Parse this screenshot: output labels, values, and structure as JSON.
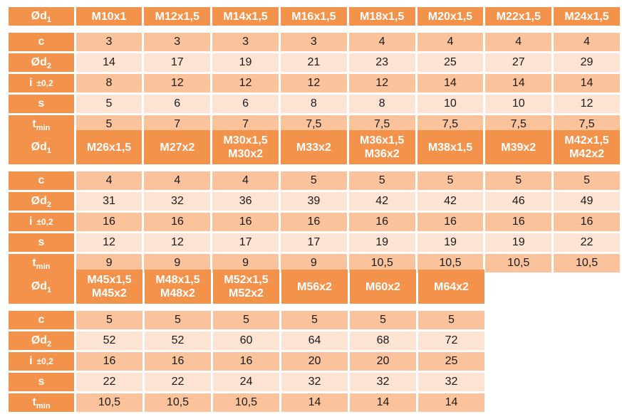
{
  "labels": {
    "header": {
      "main": "Ød",
      "sub": "1"
    },
    "rows": [
      {
        "key": "c",
        "main": "c",
        "sub": "",
        "tol": ""
      },
      {
        "key": "d2",
        "main": "Ød",
        "sub": "2",
        "tol": ""
      },
      {
        "key": "i",
        "main": "i",
        "sub": "",
        "tol": "±0,2"
      },
      {
        "key": "s",
        "main": "s",
        "sub": "",
        "tol": ""
      },
      {
        "key": "t",
        "main": "t",
        "sub": "min",
        "tol": ""
      }
    ]
  },
  "blocks": [
    {
      "sizes": [
        [
          "M10x1"
        ],
        [
          "M12x1,5"
        ],
        [
          "M14x1,5"
        ],
        [
          "M16x1,5"
        ],
        [
          "M18x1,5"
        ],
        [
          "M20x1,5"
        ],
        [
          "M22x1,5"
        ],
        [
          "M24x1,5"
        ]
      ],
      "values": [
        [
          "3",
          "3",
          "3",
          "3",
          "4",
          "4",
          "4",
          "4"
        ],
        [
          "14",
          "17",
          "19",
          "21",
          "23",
          "25",
          "27",
          "29"
        ],
        [
          "8",
          "12",
          "12",
          "12",
          "12",
          "14",
          "14",
          "14"
        ],
        [
          "5",
          "6",
          "6",
          "8",
          "8",
          "10",
          "10",
          "12"
        ],
        [
          "5",
          "7",
          "7",
          "7,5",
          "7,5",
          "7,5",
          "7,5",
          "7,5"
        ]
      ]
    },
    {
      "sizes": [
        [
          "M26x1,5"
        ],
        [
          "M27x2"
        ],
        [
          "M30x1,5",
          "M30x2"
        ],
        [
          "M33x2"
        ],
        [
          "M36x1,5",
          "M36x2"
        ],
        [
          "M38x1,5"
        ],
        [
          "M39x2"
        ],
        [
          "M42x1,5",
          "M42x2"
        ]
      ],
      "values": [
        [
          "4",
          "4",
          "4",
          "5",
          "5",
          "5",
          "5",
          "5"
        ],
        [
          "31",
          "32",
          "36",
          "39",
          "42",
          "42",
          "46",
          "49"
        ],
        [
          "16",
          "16",
          "16",
          "16",
          "16",
          "16",
          "16",
          "16"
        ],
        [
          "12",
          "12",
          "17",
          "17",
          "19",
          "19",
          "19",
          "22"
        ],
        [
          "9",
          "9",
          "9",
          "9",
          "10,5",
          "10,5",
          "10,5",
          "10,5"
        ]
      ]
    },
    {
      "sizes": [
        [
          "M45x1,5",
          "M45x2"
        ],
        [
          "M48x1,5",
          "M48x2"
        ],
        [
          "M52x1,5",
          "M52x2"
        ],
        [
          "M56x2"
        ],
        [
          "M60x2"
        ],
        [
          "M64x2"
        ]
      ],
      "values": [
        [
          "5",
          "5",
          "5",
          "5",
          "5",
          "5"
        ],
        [
          "52",
          "52",
          "60",
          "64",
          "68",
          "72"
        ],
        [
          "16",
          "16",
          "16",
          "20",
          "20",
          "25"
        ],
        [
          "22",
          "22",
          "24",
          "32",
          "32",
          "32"
        ],
        [
          "10,5",
          "10,5",
          "10,5",
          "14",
          "14",
          "14"
        ]
      ]
    }
  ]
}
